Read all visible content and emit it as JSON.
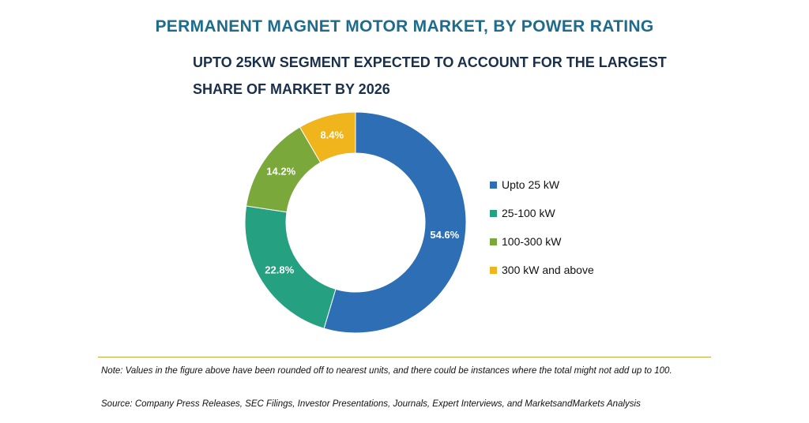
{
  "chart_data": {
    "type": "pie",
    "title": "PERMANENT MAGNET MOTOR MARKET, BY POWER RATING",
    "subtitle": "UPTO 25KW SEGMENT EXPECTED TO ACCOUNT FOR THE LARGEST SHARE OF MARKET BY 2026",
    "donut": true,
    "legend_position": "right",
    "categories": [
      "Upto 25 kW",
      "25-100 kW",
      "100-300 kW",
      "300 kW and above"
    ],
    "values": [
      54.6,
      22.8,
      14.2,
      8.4
    ],
    "value_labels": [
      "54.6%",
      "22.8%",
      "14.2%",
      "8.4%"
    ],
    "colors": [
      "#2e6eb5",
      "#25a080",
      "#7ba83a",
      "#f0b51d"
    ]
  },
  "footer": {
    "note": "Note: Values in the figure above have been rounded off to nearest units, and there could be instances where the total might not add up to 100.",
    "source": "Source: Company Press Releases, SEC Filings, Investor Presentations, Journals, Expert Interviews, and MarketsandMarkets Analysis"
  }
}
